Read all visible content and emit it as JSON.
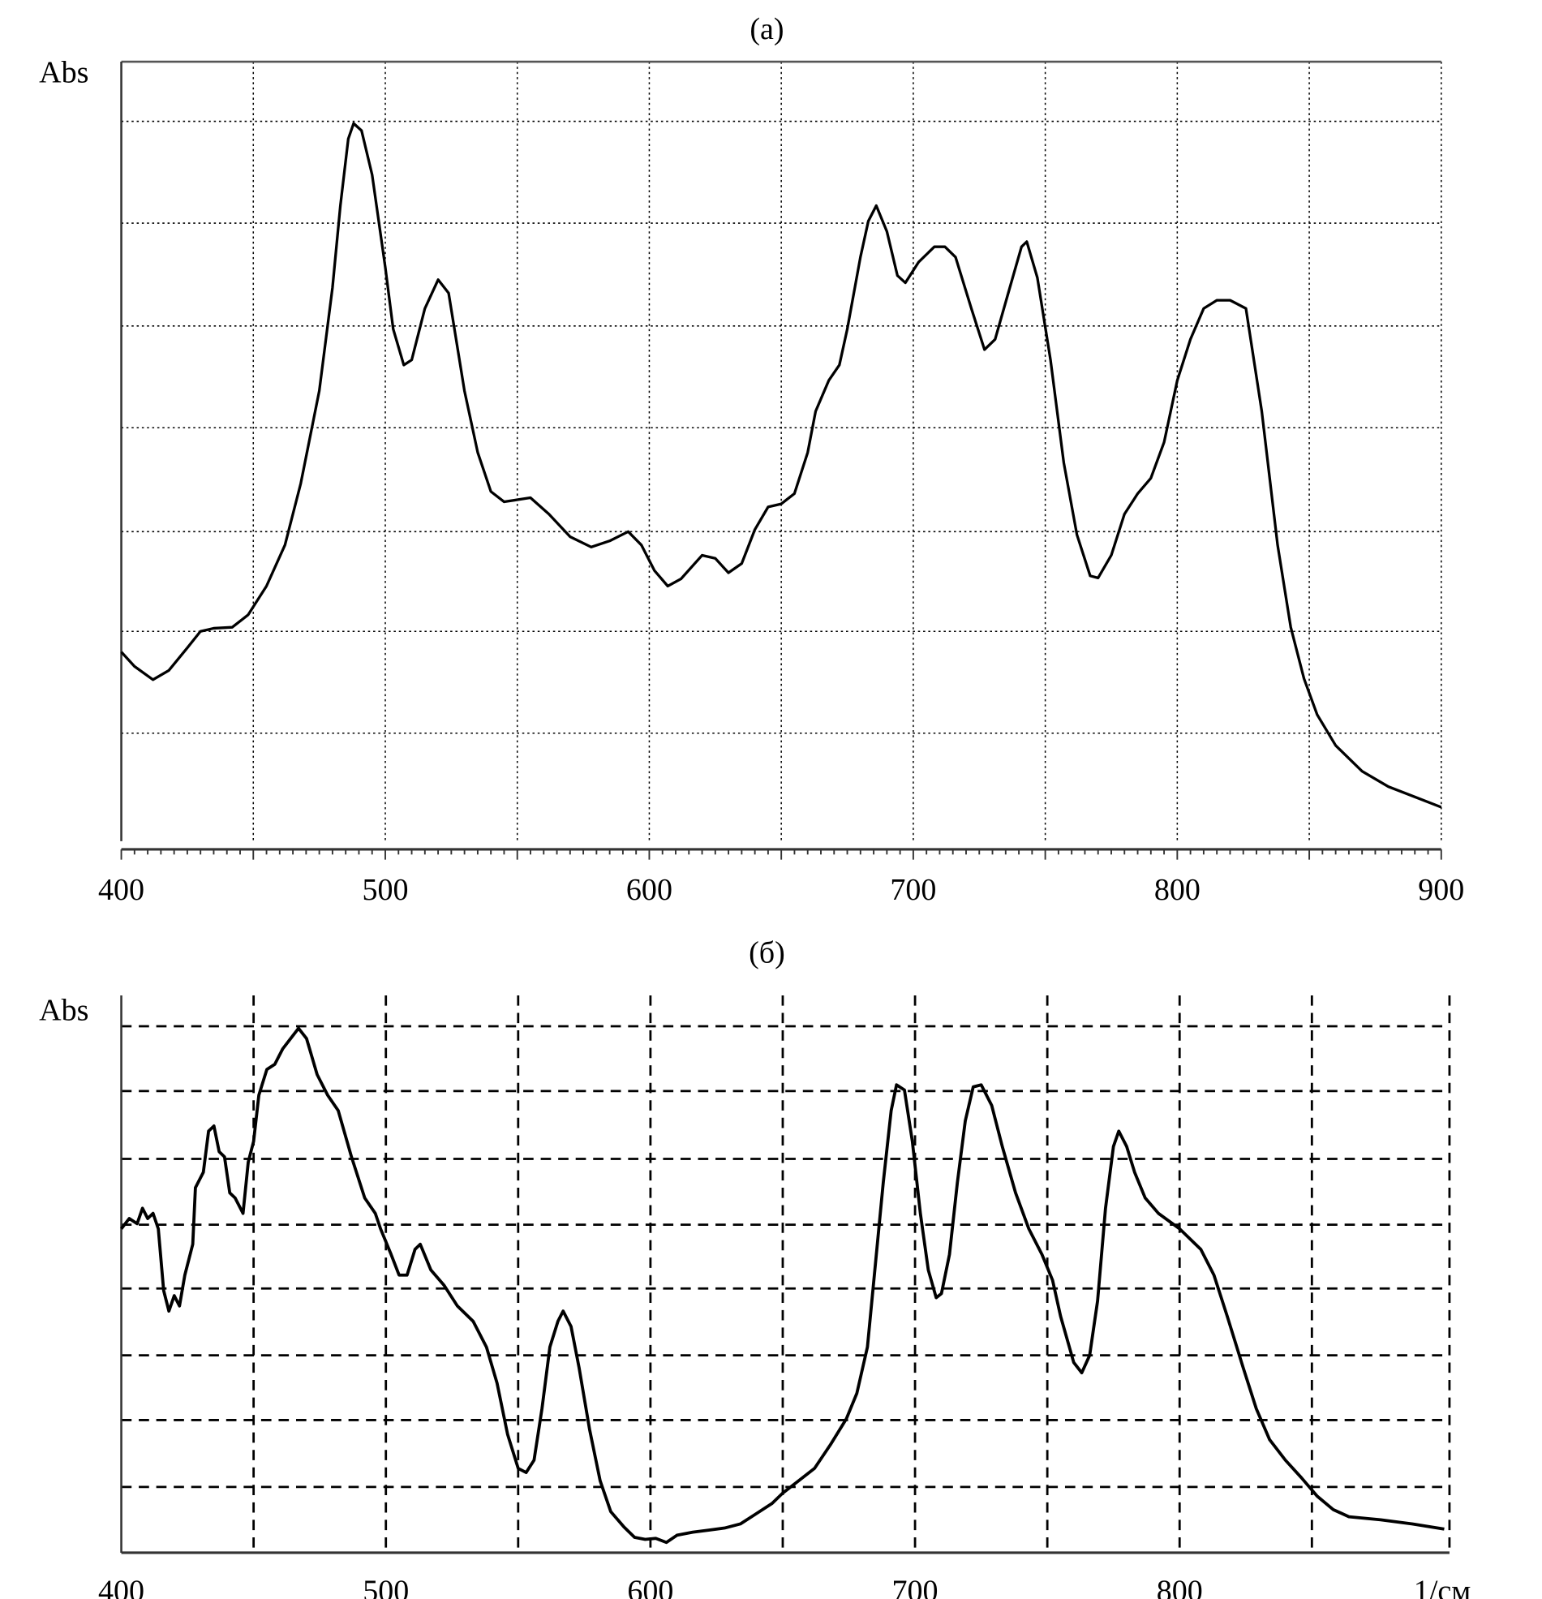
{
  "chart_data": [
    {
      "type": "line",
      "title": "(a)",
      "ylabel": "Abs",
      "xlabel": "",
      "xlim": [
        400,
        900
      ],
      "ylim": [
        0,
        7.58
      ],
      "x_ticks": [
        400,
        500,
        600,
        700,
        800,
        900
      ],
      "x_tick_labels": [
        "400",
        "500",
        "600",
        "700",
        "800",
        "900"
      ],
      "x_grid": [
        450,
        500,
        550,
        600,
        650,
        700,
        750,
        800,
        850,
        900
      ],
      "y_grid": [
        1.05,
        2.04,
        3.01,
        4.02,
        5.01,
        6.01,
        7.0
      ],
      "grid": "dotted",
      "line_color": "#000000",
      "points": [
        [
          400,
          1.84
        ],
        [
          405,
          1.7
        ],
        [
          412,
          1.57
        ],
        [
          418,
          1.66
        ],
        [
          425,
          1.88
        ],
        [
          430,
          2.04
        ],
        [
          435,
          2.07
        ],
        [
          442,
          2.08
        ],
        [
          448,
          2.2
        ],
        [
          455,
          2.48
        ],
        [
          462,
          2.88
        ],
        [
          468,
          3.48
        ],
        [
          475,
          4.38
        ],
        [
          480,
          5.38
        ],
        [
          483,
          6.18
        ],
        [
          486,
          6.83
        ],
        [
          488,
          6.98
        ],
        [
          491,
          6.91
        ],
        [
          495,
          6.48
        ],
        [
          500,
          5.58
        ],
        [
          503,
          4.98
        ],
        [
          507,
          4.63
        ],
        [
          510,
          4.68
        ],
        [
          515,
          5.18
        ],
        [
          520,
          5.46
        ],
        [
          524,
          5.33
        ],
        [
          530,
          4.38
        ],
        [
          535,
          3.78
        ],
        [
          540,
          3.4
        ],
        [
          545,
          3.3
        ],
        [
          555,
          3.34
        ],
        [
          562,
          3.18
        ],
        [
          570,
          2.96
        ],
        [
          578,
          2.86
        ],
        [
          585,
          2.92
        ],
        [
          592,
          3.01
        ],
        [
          597,
          2.88
        ],
        [
          602,
          2.63
        ],
        [
          607,
          2.48
        ],
        [
          612,
          2.55
        ],
        [
          620,
          2.78
        ],
        [
          625,
          2.75
        ],
        [
          630,
          2.61
        ],
        [
          635,
          2.7
        ],
        [
          640,
          3.03
        ],
        [
          645,
          3.25
        ],
        [
          650,
          3.28
        ],
        [
          655,
          3.38
        ],
        [
          660,
          3.78
        ],
        [
          663,
          4.18
        ],
        [
          668,
          4.48
        ],
        [
          672,
          4.63
        ],
        [
          675,
          4.98
        ],
        [
          680,
          5.68
        ],
        [
          683,
          6.03
        ],
        [
          686,
          6.18
        ],
        [
          690,
          5.93
        ],
        [
          694,
          5.5
        ],
        [
          697,
          5.43
        ],
        [
          702,
          5.63
        ],
        [
          708,
          5.78
        ],
        [
          712,
          5.78
        ],
        [
          716,
          5.68
        ],
        [
          722,
          5.18
        ],
        [
          727,
          4.78
        ],
        [
          731,
          4.88
        ],
        [
          736,
          5.33
        ],
        [
          741,
          5.78
        ],
        [
          743,
          5.83
        ],
        [
          747,
          5.48
        ],
        [
          752,
          4.68
        ],
        [
          757,
          3.68
        ],
        [
          762,
          2.98
        ],
        [
          767,
          2.58
        ],
        [
          770,
          2.56
        ],
        [
          775,
          2.78
        ],
        [
          780,
          3.18
        ],
        [
          785,
          3.38
        ],
        [
          790,
          3.53
        ],
        [
          795,
          3.88
        ],
        [
          800,
          4.48
        ],
        [
          805,
          4.88
        ],
        [
          810,
          5.18
        ],
        [
          815,
          5.26
        ],
        [
          820,
          5.26
        ],
        [
          826,
          5.18
        ],
        [
          832,
          4.18
        ],
        [
          838,
          2.88
        ],
        [
          843,
          2.08
        ],
        [
          848,
          1.58
        ],
        [
          853,
          1.23
        ],
        [
          860,
          0.93
        ],
        [
          870,
          0.68
        ],
        [
          880,
          0.53
        ],
        [
          890,
          0.43
        ],
        [
          900,
          0.33
        ]
      ]
    },
    {
      "type": "line",
      "title": "(б)",
      "ylabel": "Abs",
      "xlabel": "1/см",
      "xlim": [
        400,
        902
      ],
      "ylim": [
        0,
        5.42
      ],
      "x_ticks": [
        400,
        500,
        600,
        700,
        800
      ],
      "x_tick_labels": [
        "400",
        "500",
        "600",
        "700",
        "800"
      ],
      "x_grid": [
        450,
        500,
        550,
        600,
        650,
        700,
        750,
        800,
        850,
        902
      ],
      "y_grid": [
        0.64,
        1.29,
        1.92,
        2.57,
        3.19,
        3.83,
        4.49,
        5.12
      ],
      "grid": "dashed",
      "line_color": "#000000",
      "points": [
        [
          400,
          3.15
        ],
        [
          403,
          3.25
        ],
        [
          406,
          3.2
        ],
        [
          408,
          3.35
        ],
        [
          410,
          3.25
        ],
        [
          412,
          3.3
        ],
        [
          414,
          3.15
        ],
        [
          416,
          2.55
        ],
        [
          418,
          2.35
        ],
        [
          420,
          2.5
        ],
        [
          422,
          2.4
        ],
        [
          424,
          2.7
        ],
        [
          427,
          3.0
        ],
        [
          428,
          3.55
        ],
        [
          431,
          3.7
        ],
        [
          433,
          4.1
        ],
        [
          435,
          4.15
        ],
        [
          437,
          3.9
        ],
        [
          439,
          3.85
        ],
        [
          441,
          3.5
        ],
        [
          443,
          3.45
        ],
        [
          446,
          3.3
        ],
        [
          448,
          3.8
        ],
        [
          450,
          4.0
        ],
        [
          452,
          4.45
        ],
        [
          455,
          4.7
        ],
        [
          458,
          4.75
        ],
        [
          461,
          4.9
        ],
        [
          464,
          5.0
        ],
        [
          467,
          5.1
        ],
        [
          470,
          5.0
        ],
        [
          474,
          4.65
        ],
        [
          478,
          4.45
        ],
        [
          482,
          4.3
        ],
        [
          487,
          3.85
        ],
        [
          492,
          3.45
        ],
        [
          496,
          3.3
        ],
        [
          498,
          3.15
        ],
        [
          502,
          2.9
        ],
        [
          505,
          2.7
        ],
        [
          508,
          2.7
        ],
        [
          511,
          2.95
        ],
        [
          513,
          3.0
        ],
        [
          517,
          2.75
        ],
        [
          522,
          2.6
        ],
        [
          527,
          2.4
        ],
        [
          533,
          2.25
        ],
        [
          538,
          2.0
        ],
        [
          542,
          1.65
        ],
        [
          546,
          1.15
        ],
        [
          550,
          0.82
        ],
        [
          553,
          0.78
        ],
        [
          556,
          0.9
        ],
        [
          559,
          1.4
        ],
        [
          562,
          2.0
        ],
        [
          565,
          2.25
        ],
        [
          567,
          2.35
        ],
        [
          570,
          2.2
        ],
        [
          573,
          1.8
        ],
        [
          577,
          1.2
        ],
        [
          581,
          0.7
        ],
        [
          585,
          0.4
        ],
        [
          590,
          0.25
        ],
        [
          594,
          0.15
        ],
        [
          598,
          0.13
        ],
        [
          602,
          0.14
        ],
        [
          606,
          0.1
        ],
        [
          610,
          0.17
        ],
        [
          616,
          0.2
        ],
        [
          622,
          0.22
        ],
        [
          628,
          0.24
        ],
        [
          634,
          0.28
        ],
        [
          640,
          0.38
        ],
        [
          646,
          0.48
        ],
        [
          650,
          0.58
        ],
        [
          656,
          0.7
        ],
        [
          662,
          0.82
        ],
        [
          668,
          1.05
        ],
        [
          674,
          1.3
        ],
        [
          678,
          1.55
        ],
        [
          682,
          2.0
        ],
        [
          685,
          2.8
        ],
        [
          688,
          3.6
        ],
        [
          691,
          4.3
        ],
        [
          693,
          4.55
        ],
        [
          696,
          4.5
        ],
        [
          699,
          4.0
        ],
        [
          702,
          3.3
        ],
        [
          705,
          2.75
        ],
        [
          708,
          2.48
        ],
        [
          710,
          2.52
        ],
        [
          713,
          2.9
        ],
        [
          716,
          3.6
        ],
        [
          719,
          4.2
        ],
        [
          722,
          4.53
        ],
        [
          725,
          4.55
        ],
        [
          729,
          4.35
        ],
        [
          733,
          3.95
        ],
        [
          738,
          3.5
        ],
        [
          743,
          3.15
        ],
        [
          748,
          2.9
        ],
        [
          752,
          2.65
        ],
        [
          755,
          2.3
        ],
        [
          760,
          1.85
        ],
        [
          763,
          1.75
        ],
        [
          766,
          1.92
        ],
        [
          769,
          2.45
        ],
        [
          772,
          3.35
        ],
        [
          775,
          3.95
        ],
        [
          777,
          4.1
        ],
        [
          780,
          3.95
        ],
        [
          783,
          3.7
        ],
        [
          787,
          3.45
        ],
        [
          792,
          3.3
        ],
        [
          800,
          3.15
        ],
        [
          808,
          2.95
        ],
        [
          813,
          2.7
        ],
        [
          818,
          2.3
        ],
        [
          824,
          1.8
        ],
        [
          829,
          1.4
        ],
        [
          834,
          1.1
        ],
        [
          840,
          0.9
        ],
        [
          846,
          0.73
        ],
        [
          852,
          0.55
        ],
        [
          858,
          0.42
        ],
        [
          864,
          0.35
        ],
        [
          876,
          0.32
        ],
        [
          888,
          0.28
        ],
        [
          900,
          0.23
        ]
      ]
    }
  ]
}
